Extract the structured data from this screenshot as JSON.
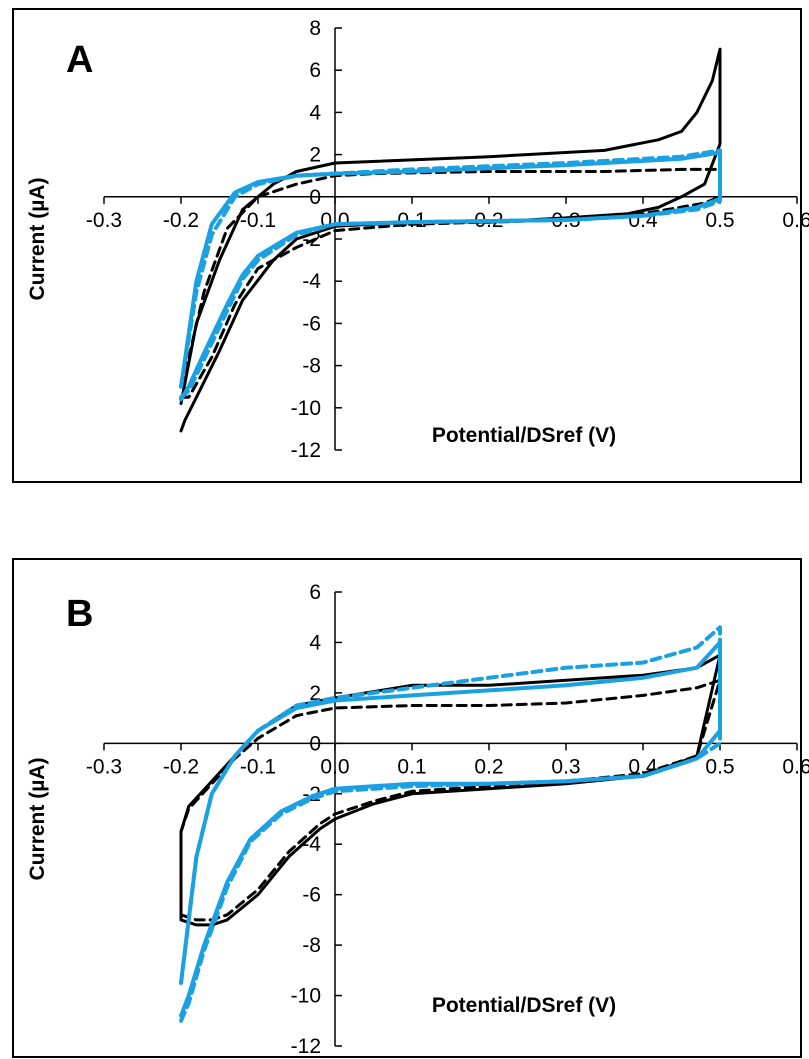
{
  "colors": {
    "black": "#000000",
    "blue": "#1BA1E2"
  },
  "chart_data": [
    {
      "type": "line",
      "panel_label": "A",
      "xlabel": "Potential/DSref (V)",
      "ylabel": "Current  (µA)",
      "xlim": [
        -0.3,
        0.6
      ],
      "ylim": [
        -12,
        8
      ],
      "xticks": [
        "-0.3",
        "-0.2",
        "-0.1",
        "0.0",
        "0.1",
        "0.2",
        "0.3",
        "0.4",
        "0.5",
        "0.6"
      ],
      "yticks": [
        "8",
        "6",
        "4",
        "2",
        "0",
        "-2",
        "-4",
        "-6",
        "-8",
        "-10",
        "-12"
      ],
      "grid": false,
      "series": [
        {
          "color": "black",
          "style": "solid",
          "x": [
            -0.2,
            -0.195,
            -0.18,
            -0.15,
            -0.12,
            -0.08,
            -0.05,
            0.0,
            0.1,
            0.2,
            0.3,
            0.38,
            0.42,
            0.45,
            0.48,
            0.5,
            0.5,
            0.49,
            0.47,
            0.45,
            0.42,
            0.35,
            0.2,
            0.0,
            -0.05,
            -0.08,
            -0.12,
            -0.15,
            -0.18,
            -0.2
          ],
          "y": [
            -11.1,
            -10.6,
            -9.5,
            -7.3,
            -4.9,
            -3.0,
            -2.0,
            -1.4,
            -1.2,
            -1.2,
            -1.0,
            -0.8,
            -0.5,
            0.0,
            0.6,
            2.5,
            7.0,
            5.5,
            4.0,
            3.1,
            2.7,
            2.2,
            1.9,
            1.6,
            1.2,
            0.6,
            -0.6,
            -3.0,
            -6.0,
            -9.8
          ]
        },
        {
          "color": "black",
          "style": "dashed",
          "x": [
            -0.2,
            -0.19,
            -0.16,
            -0.13,
            -0.1,
            -0.05,
            0.0,
            0.1,
            0.2,
            0.3,
            0.4,
            0.48,
            0.5,
            0.5,
            0.45,
            0.35,
            0.2,
            0.05,
            0.0,
            -0.05,
            -0.1,
            -0.14,
            -0.17,
            -0.2
          ],
          "y": [
            -9.5,
            -9.5,
            -7.6,
            -5.1,
            -3.4,
            -2.4,
            -1.6,
            -1.3,
            -1.2,
            -1.1,
            -0.8,
            -0.3,
            0.0,
            1.3,
            1.3,
            1.2,
            1.2,
            1.1,
            1.0,
            0.6,
            0.0,
            -1.5,
            -4.5,
            -9.2
          ]
        },
        {
          "color": "blue",
          "style": "dashed",
          "x": [
            -0.2,
            -0.19,
            -0.17,
            -0.14,
            -0.12,
            -0.1,
            -0.05,
            0.0,
            0.1,
            0.3,
            0.4,
            0.47,
            0.5,
            0.5,
            0.45,
            0.3,
            0.1,
            0.0,
            -0.05,
            -0.1,
            -0.13,
            -0.16,
            -0.18,
            -0.2
          ],
          "y": [
            -9.5,
            -9.2,
            -7.7,
            -5.4,
            -3.9,
            -3.0,
            -1.8,
            -1.3,
            -1.2,
            -1.1,
            -0.9,
            -0.6,
            -0.2,
            2.2,
            1.9,
            1.6,
            1.3,
            1.1,
            1.0,
            0.6,
            0.0,
            -1.8,
            -4.5,
            -9.0
          ]
        },
        {
          "color": "blue",
          "style": "solid",
          "x": [
            -0.2,
            -0.19,
            -0.17,
            -0.14,
            -0.12,
            -0.1,
            -0.05,
            0.0,
            0.1,
            0.3,
            0.4,
            0.47,
            0.5,
            0.5,
            0.45,
            0.3,
            0.1,
            0.0,
            -0.05,
            -0.1,
            -0.13,
            -0.16,
            -0.18,
            -0.2
          ],
          "y": [
            -9.6,
            -9.0,
            -7.4,
            -5.1,
            -3.7,
            -2.8,
            -1.7,
            -1.3,
            -1.2,
            -1.1,
            -0.9,
            -0.5,
            -0.1,
            2.1,
            1.8,
            1.5,
            1.2,
            1.1,
            1.0,
            0.7,
            0.2,
            -1.3,
            -4.0,
            -9.0
          ]
        }
      ]
    },
    {
      "type": "line",
      "panel_label": "B",
      "xlabel": "Potential/DSref (V)",
      "ylabel": "Current (µA)",
      "xlim": [
        -0.3,
        0.6
      ],
      "ylim": [
        -12,
        6
      ],
      "xticks": [
        "-0.3",
        "-0.2",
        "-0.1",
        "0.0",
        "0.1",
        "0.2",
        "0.3",
        "0.4",
        "0.5",
        "0.6"
      ],
      "yticks": [
        "6",
        "4",
        "2",
        "0",
        "-2",
        "-4",
        "-6",
        "-8",
        "-10",
        "-12"
      ],
      "grid": false,
      "series": [
        {
          "color": "black",
          "style": "solid",
          "x": [
            -0.2,
            -0.18,
            -0.16,
            -0.14,
            -0.1,
            -0.06,
            -0.02,
            0.0,
            0.05,
            0.1,
            0.2,
            0.3,
            0.4,
            0.47,
            0.5,
            0.5,
            0.47,
            0.4,
            0.3,
            0.2,
            0.1,
            0.0,
            -0.05,
            -0.1,
            -0.13,
            -0.16,
            -0.19,
            -0.2,
            -0.2
          ],
          "y": [
            -7.0,
            -7.2,
            -7.2,
            -7.0,
            -6.0,
            -4.5,
            -3.4,
            -3.0,
            -2.4,
            -2.0,
            -1.8,
            -1.6,
            -1.3,
            -0.5,
            3.5,
            3.5,
            3.0,
            2.7,
            2.5,
            2.3,
            2.3,
            1.8,
            1.5,
            0.5,
            -0.5,
            -1.5,
            -2.5,
            -3.5,
            -7.0
          ]
        },
        {
          "color": "black",
          "style": "dashed",
          "x": [
            -0.2,
            -0.18,
            -0.16,
            -0.14,
            -0.1,
            -0.06,
            -0.02,
            0.0,
            0.05,
            0.1,
            0.2,
            0.3,
            0.4,
            0.47,
            0.5,
            0.5,
            0.47,
            0.4,
            0.3,
            0.2,
            0.1,
            0.0,
            -0.05,
            -0.1,
            -0.13,
            -0.16,
            -0.19,
            -0.2,
            -0.2
          ],
          "y": [
            -6.8,
            -7.0,
            -7.0,
            -6.8,
            -5.8,
            -4.3,
            -3.2,
            -2.8,
            -2.3,
            -1.9,
            -1.7,
            -1.5,
            -1.2,
            -0.5,
            2.5,
            2.5,
            2.2,
            1.9,
            1.6,
            1.5,
            1.5,
            1.4,
            1.1,
            0.2,
            -0.6,
            -1.6,
            -2.6,
            -3.5,
            -6.8
          ]
        },
        {
          "color": "blue",
          "style": "dashed",
          "x": [
            -0.2,
            -0.19,
            -0.17,
            -0.14,
            -0.11,
            -0.07,
            -0.03,
            0.0,
            0.1,
            0.2,
            0.3,
            0.4,
            0.47,
            0.5,
            0.5,
            0.47,
            0.4,
            0.3,
            0.2,
            0.1,
            0.0,
            -0.05,
            -0.1,
            -0.13,
            -0.16,
            -0.18,
            -0.2
          ],
          "y": [
            -11.0,
            -10.3,
            -8.2,
            -5.7,
            -3.9,
            -2.8,
            -2.2,
            -1.9,
            -1.7,
            -1.6,
            -1.5,
            -1.3,
            -0.6,
            0.0,
            4.6,
            3.8,
            3.2,
            3.0,
            2.6,
            2.2,
            1.8,
            1.5,
            0.5,
            -0.5,
            -2.0,
            -4.5,
            -9.5
          ]
        },
        {
          "color": "blue",
          "style": "solid",
          "x": [
            -0.2,
            -0.19,
            -0.17,
            -0.14,
            -0.11,
            -0.07,
            -0.03,
            0.0,
            0.1,
            0.2,
            0.3,
            0.4,
            0.47,
            0.5,
            0.5,
            0.47,
            0.4,
            0.3,
            0.2,
            0.1,
            0.0,
            -0.05,
            -0.1,
            -0.13,
            -0.16,
            -0.18,
            -0.2
          ],
          "y": [
            -10.8,
            -10.0,
            -8.0,
            -5.5,
            -3.8,
            -2.7,
            -2.1,
            -1.8,
            -1.6,
            -1.6,
            -1.5,
            -1.3,
            -0.6,
            0.5,
            4.0,
            3.0,
            2.6,
            2.3,
            2.1,
            1.9,
            1.7,
            1.4,
            0.5,
            -0.5,
            -2.0,
            -4.5,
            -9.5
          ]
        }
      ]
    }
  ]
}
